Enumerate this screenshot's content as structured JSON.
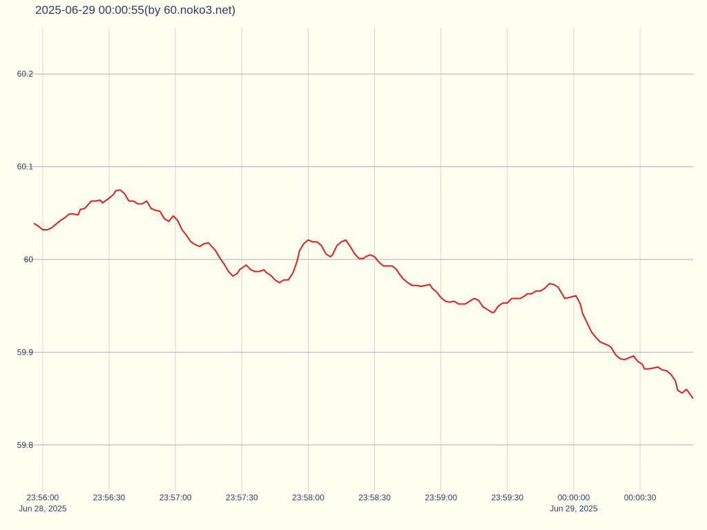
{
  "chart_data": {
    "type": "line",
    "title": "2025-06-29 00:00:55(by 60.noko3.net)",
    "color": "#e31a1c",
    "grid": true,
    "x": [
      86156,
      86158,
      86160,
      86162,
      86164,
      86166,
      86168,
      86170,
      86172,
      86174,
      86176,
      86177,
      86179,
      86182,
      86184,
      86186,
      86187,
      86190,
      86192,
      86193,
      86195,
      86197,
      86199,
      86201,
      86203,
      86205,
      86207,
      86209,
      86211,
      86213,
      86215,
      86217,
      86219,
      86221,
      86223,
      86225,
      86227,
      86229,
      86231,
      86233,
      86235,
      86236,
      86238,
      86240,
      86242,
      86244,
      86246,
      86248,
      86249,
      86252,
      86254,
      86256,
      86258,
      86260,
      86261,
      86263,
      86265,
      86267,
      86269,
      86271,
      86273,
      86275,
      86276,
      86278,
      86280,
      86282,
      86284,
      86286,
      86288,
      86290,
      86291,
      86293,
      86295,
      86297,
      86299,
      86301,
      86303,
      86305,
      86306,
      86308,
      86310,
      86312,
      86314,
      86316,
      86318,
      86320,
      86321,
      86323,
      86325,
      86327,
      86329,
      86331,
      86333,
      86335,
      86336,
      86338,
      86340,
      86342,
      86344,
      86346,
      86348,
      86349,
      86351,
      86353,
      86355,
      86357,
      86359,
      86361,
      86363,
      86364,
      86366,
      86368,
      86370,
      86372,
      86374,
      86376,
      86378,
      86379,
      86381,
      86383,
      86385,
      86387,
      86389,
      86391,
      86393,
      86394,
      86396,
      86398,
      86401,
      86403,
      86404,
      86406,
      86408,
      86410,
      86412,
      86414,
      86416,
      86417,
      86419,
      86421,
      86423,
      86425,
      86427,
      86429,
      86431,
      86432,
      86434,
      86436,
      86438,
      86440,
      86442,
      86444,
      86446,
      86447,
      86449,
      86451,
      86454
    ],
    "values": [
      60.039,
      60.036,
      60.032,
      60.032,
      60.034,
      60.038,
      60.042,
      60.045,
      60.049,
      60.049,
      60.048,
      60.054,
      60.055,
      60.063,
      60.063,
      60.064,
      60.061,
      60.066,
      60.07,
      60.074,
      60.075,
      60.071,
      60.063,
      60.063,
      60.06,
      60.06,
      60.063,
      60.055,
      60.053,
      60.052,
      60.044,
      60.041,
      60.047,
      60.042,
      60.032,
      60.026,
      60.019,
      60.016,
      60.014,
      60.017,
      60.018,
      60.015,
      60.01,
      60.002,
      59.995,
      59.987,
      59.982,
      59.985,
      59.989,
      59.994,
      59.989,
      59.987,
      59.987,
      59.989,
      59.986,
      59.983,
      59.978,
      59.975,
      59.978,
      59.978,
      59.985,
      59.998,
      60.009,
      60.017,
      60.021,
      60.019,
      60.019,
      60.015,
      60.006,
      60.003,
      60.005,
      60.015,
      60.019,
      60.021,
      60.014,
      60.006,
      60.001,
      60.001,
      60.003,
      60.005,
      60.003,
      59.997,
      59.993,
      59.993,
      59.993,
      59.989,
      59.985,
      59.979,
      59.975,
      59.972,
      59.972,
      59.971,
      59.972,
      59.973,
      59.969,
      59.965,
      59.959,
      59.955,
      59.954,
      59.955,
      59.952,
      59.952,
      59.952,
      59.955,
      59.958,
      59.956,
      59.949,
      59.946,
      59.943,
      59.943,
      59.95,
      59.953,
      59.953,
      59.958,
      59.958,
      59.958,
      59.961,
      59.963,
      59.963,
      59.966,
      59.966,
      59.969,
      59.974,
      59.973,
      59.97,
      59.966,
      59.958,
      59.959,
      59.961,
      59.952,
      59.942,
      59.932,
      59.922,
      59.916,
      59.911,
      59.909,
      59.907,
      59.905,
      59.897,
      59.893,
      59.892,
      59.894,
      59.896,
      59.89,
      59.887,
      59.882,
      59.882,
      59.883,
      59.884,
      59.881,
      59.88,
      59.876,
      59.869,
      59.859,
      59.856,
      59.86,
      59.85
    ],
    "xlim": [
      86151,
      86454
    ],
    "xticks": [
      {
        "value": 86160,
        "label": "23:56:00"
      },
      {
        "value": 86190,
        "label": "23:56:30"
      },
      {
        "value": 86220,
        "label": "23:57:00"
      },
      {
        "value": 86250,
        "label": "23:57:30"
      },
      {
        "value": 86280,
        "label": "23:58:00"
      },
      {
        "value": 86310,
        "label": "23:58:30"
      },
      {
        "value": 86340,
        "label": "23:59:00"
      },
      {
        "value": 86370,
        "label": "23:59:30"
      },
      {
        "value": 86400,
        "label": "00:00:00"
      },
      {
        "value": 86430,
        "label": "00:00:30"
      }
    ],
    "xdateticks": [
      {
        "value": 86160,
        "label": "Jun 28, 2025"
      },
      {
        "value": 86400,
        "label": "Jun 29, 2025"
      }
    ],
    "ylim": [
      59.75,
      60.25
    ],
    "yticks": [
      59.8,
      59.9,
      60,
      60.1,
      60.2
    ]
  }
}
